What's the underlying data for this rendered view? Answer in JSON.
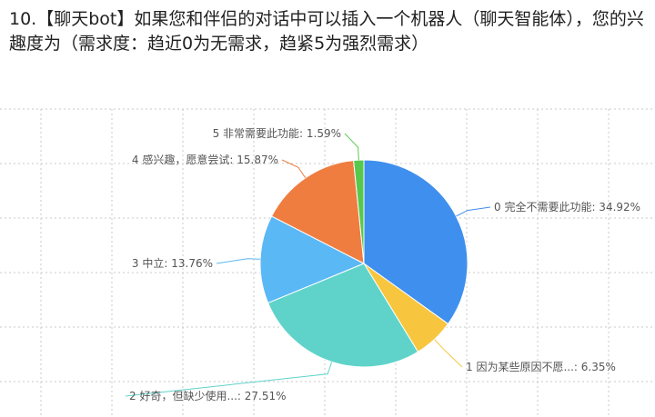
{
  "question": {
    "text": "10.【聊天bot】如果您和伴侣的对话中可以插入一个机器人（聊天智能体），您的兴趣度为（需求度：趋近0为无需求，趋紧5为强烈需求）"
  },
  "colors": {
    "background": "#ffffff",
    "grid": "#c8c8c8"
  },
  "chart_data": {
    "type": "pie",
    "title": "",
    "slices": [
      {
        "label": "0 完全不需要此功能",
        "value": 34.92,
        "display": "0 完全不需要此功能: 34.92%",
        "color": "#3f8fee"
      },
      {
        "label": "1 因为某些原因不愿...",
        "value": 6.35,
        "display": "1 因为某些原因不愿...: 6.35%",
        "color": "#f8c53e"
      },
      {
        "label": "2 好奇，但缺少使用...",
        "value": 27.51,
        "display": "2 好奇，但缺少使用...: 27.51%",
        "color": "#5fd3c9"
      },
      {
        "label": "3 中立",
        "value": 13.76,
        "display": "3 中立: 13.76%",
        "color": "#5ab8f5"
      },
      {
        "label": "4 感兴趣，愿意尝试",
        "value": 15.87,
        "display": "4 感兴趣，愿意尝试: 15.87%",
        "color": "#ef7d40"
      },
      {
        "label": "5 非常需要此功能",
        "value": 1.59,
        "display": "5 非常需要此功能: 1.59%",
        "color": "#57c84d"
      }
    ]
  }
}
